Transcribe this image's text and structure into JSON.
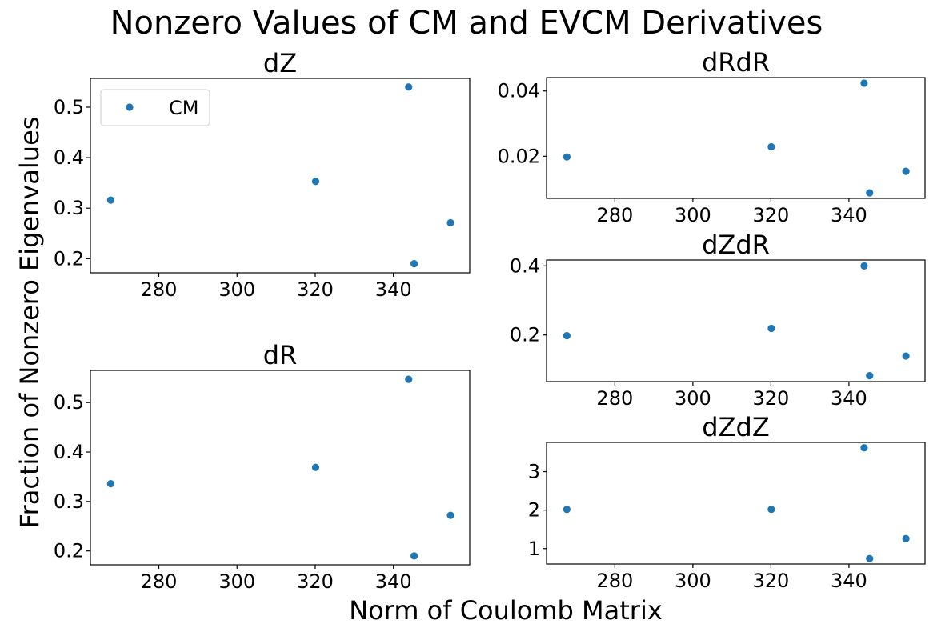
{
  "figure": {
    "suptitle": "Nonzero Values of CM and EVCM Derivatives",
    "xlabel": "Norm of Coulomb Matrix",
    "ylabel": "Fraction of Nonzero Eigenvalues",
    "marker_color": "#1f77b4"
  },
  "chart_data": [
    {
      "type": "scatter",
      "title": "dZ",
      "series": [
        {
          "name": "CM",
          "x": [
            267.7,
            320.1,
            343.9,
            345.3,
            354.6
          ],
          "y": [
            0.316,
            0.353,
            0.54,
            0.19,
            0.271
          ]
        }
      ],
      "xlim": [
        262.5,
        359.5
      ],
      "ylim": [
        0.172,
        0.557
      ],
      "xticks": [
        280,
        300,
        320,
        340
      ],
      "yticks": [
        0.2,
        0.3,
        0.4,
        0.5
      ],
      "yticklabels": [
        "0.2",
        "0.3",
        "0.4",
        "0.5"
      ],
      "legend": {
        "entries": [
          "CM"
        ],
        "placement": "upper left"
      }
    },
    {
      "type": "scatter",
      "title": "dR",
      "series": [
        {
          "x": [
            267.7,
            320.1,
            343.9,
            345.3,
            354.6
          ],
          "y": [
            0.336,
            0.369,
            0.547,
            0.19,
            0.272
          ]
        }
      ],
      "xlim": [
        262.5,
        359.5
      ],
      "ylim": [
        0.172,
        0.565
      ],
      "xticks": [
        280,
        300,
        320,
        340
      ],
      "yticks": [
        0.2,
        0.3,
        0.4,
        0.5
      ],
      "yticklabels": [
        "0.2",
        "0.3",
        "0.4",
        "0.5"
      ]
    },
    {
      "type": "scatter",
      "title": "dRdR",
      "series": [
        {
          "x": [
            267.7,
            320.1,
            343.9,
            345.3,
            354.6
          ],
          "y": [
            0.0198,
            0.0229,
            0.0424,
            0.0088,
            0.0154
          ]
        }
      ],
      "xlim": [
        262.5,
        359.5
      ],
      "ylim": [
        0.0071,
        0.0441
      ],
      "xticks": [
        280,
        300,
        320,
        340
      ],
      "yticks": [
        0.02,
        0.04
      ],
      "yticklabels": [
        "0.02",
        "0.04"
      ]
    },
    {
      "type": "scatter",
      "title": "dZdR",
      "series": [
        {
          "x": [
            267.7,
            320.1,
            343.9,
            345.3,
            354.6
          ],
          "y": [
            0.198,
            0.219,
            0.4,
            0.082,
            0.139
          ]
        }
      ],
      "xlim": [
        262.5,
        359.5
      ],
      "ylim": [
        0.065,
        0.417
      ],
      "xticks": [
        280,
        300,
        320,
        340
      ],
      "yticks": [
        0.2,
        0.4
      ],
      "yticklabels": [
        "0.2",
        "0.4"
      ]
    },
    {
      "type": "scatter",
      "title": "dZdZ",
      "series": [
        {
          "x": [
            267.7,
            320.1,
            343.9,
            345.3,
            354.6
          ],
          "y": [
            2.02,
            2.02,
            3.62,
            0.74,
            1.26
          ]
        }
      ],
      "xlim": [
        262.5,
        359.5
      ],
      "ylim": [
        0.6,
        3.76
      ],
      "xticks": [
        280,
        300,
        320,
        340
      ],
      "yticks": [
        1,
        2,
        3
      ],
      "yticklabels": [
        "1",
        "2",
        "3"
      ]
    }
  ]
}
